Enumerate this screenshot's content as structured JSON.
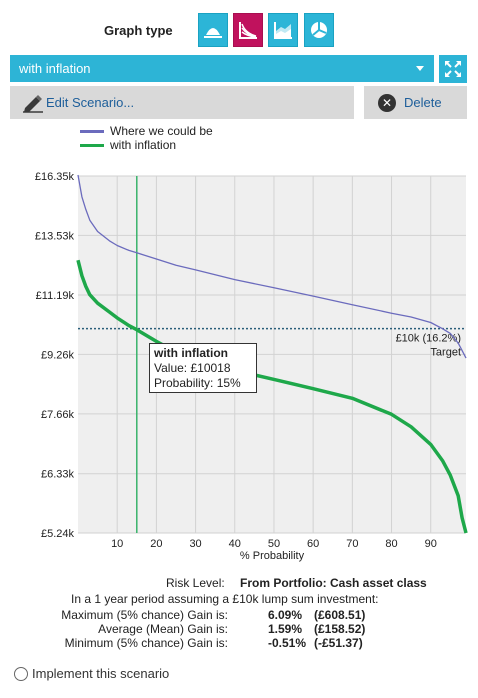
{
  "graph_type": {
    "label": "Graph type",
    "options": [
      "area-icon",
      "fan-icon",
      "stacked-icon",
      "pie-icon"
    ],
    "active_index": 1
  },
  "scenario": {
    "selected": "with inflation"
  },
  "actions": {
    "edit_label": "Edit Scenario...",
    "delete_label": "Delete"
  },
  "legend": [
    {
      "name": "Where we could be",
      "color": "#6b6bbd"
    },
    {
      "name": "with inflation",
      "color": "#1ea84a"
    }
  ],
  "chart_data": {
    "type": "line",
    "xlabel": "% Probability",
    "ylabel": "",
    "x_ticks": [
      10,
      20,
      30,
      40,
      50,
      60,
      70,
      80,
      90
    ],
    "xlim": [
      0,
      99
    ],
    "y_ticks": [
      "£16.35k",
      "£13.53k",
      "£11.19k",
      "£9.26k",
      "£7.66k",
      "£6.33k",
      "£5.24k"
    ],
    "y_tick_values": [
      16350,
      13530,
      11190,
      9260,
      7660,
      6330,
      5240
    ],
    "scale": "log",
    "ylim": [
      5240,
      16350
    ],
    "series": [
      {
        "name": "Where we could be",
        "color": "#6b6bbd",
        "x": [
          0,
          1,
          2,
          3,
          5,
          8,
          10,
          13,
          15,
          20,
          25,
          30,
          40,
          50,
          60,
          70,
          80,
          85,
          90,
          93,
          95,
          97,
          99
        ],
        "y": [
          16400,
          15300,
          14700,
          14200,
          13700,
          13300,
          13100,
          12900,
          12800,
          12550,
          12300,
          12120,
          11750,
          11450,
          11150,
          10850,
          10560,
          10430,
          10250,
          10050,
          9900,
          9600,
          9150
        ]
      },
      {
        "name": "with inflation",
        "color": "#1ea84a",
        "x": [
          0,
          1,
          2,
          3,
          5,
          8,
          10,
          13,
          15,
          20,
          25,
          30,
          40,
          50,
          60,
          70,
          80,
          85,
          90,
          93,
          95,
          97,
          98,
          99
        ],
        "y": [
          12500,
          11900,
          11500,
          11200,
          10900,
          10600,
          10400,
          10150,
          10018,
          9650,
          9330,
          9100,
          8800,
          8550,
          8300,
          8050,
          7650,
          7350,
          6950,
          6600,
          6300,
          5900,
          5500,
          5240
        ]
      }
    ],
    "target": {
      "value": 10050,
      "label": "£10k (16.2%)",
      "sublabel": "Target"
    },
    "marker_x": 15
  },
  "tooltip": {
    "title": "with inflation",
    "value": "Value: £10018",
    "probability": "Probability: 15%"
  },
  "summary": {
    "risk_label": "Risk Level:",
    "risk_value": "From Portfolio: Cash asset class",
    "period": "In a 1 year period assuming a £10k lump sum investment:",
    "rows": [
      {
        "label": "Maximum (5% chance) Gain is:",
        "pct": "6.09%",
        "amount": "(£608.51)"
      },
      {
        "label": "Average (Mean) Gain is:",
        "pct": "1.59%",
        "amount": "(£158.52)"
      },
      {
        "label": "Minimum (5% chance) Gain is:",
        "pct": "-0.51%",
        "amount": "(-£51.37)"
      }
    ]
  },
  "implement_label": "Implement this scenario"
}
